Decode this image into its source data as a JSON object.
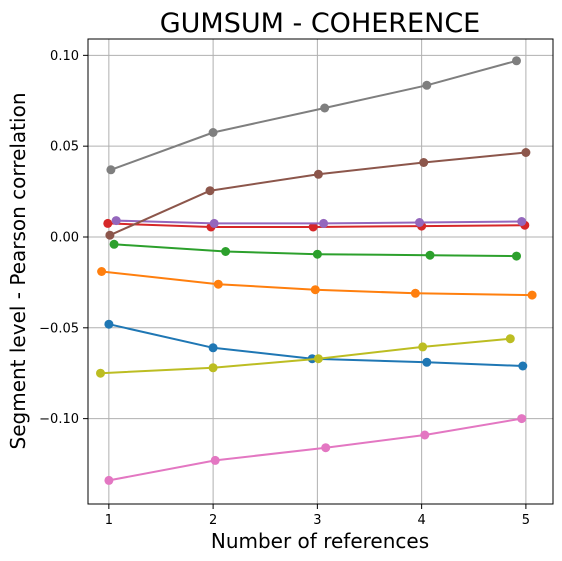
{
  "chart_data": {
    "type": "line",
    "title": "GUMSUM - COHERENCE",
    "xlabel": "Number of references",
    "ylabel": "Segment level - Pearson correlation",
    "xlim": [
      0.8,
      5.26
    ],
    "ylim": [
      -0.147,
      0.109
    ],
    "xticks": [
      1,
      2,
      3,
      4,
      5
    ],
    "xtick_labels": [
      "1",
      "2",
      "3",
      "4",
      "5"
    ],
    "yticks": [
      -0.1,
      -0.05,
      0.0,
      0.05,
      0.1
    ],
    "ytick_labels": [
      "−0.10",
      "−0.05",
      "0.00",
      "0.05",
      "0.10"
    ],
    "grid": true,
    "series": [
      {
        "color": "#1f77b4",
        "x": [
          1.0,
          2.0,
          2.95,
          4.05,
          4.97
        ],
        "y": [
          -0.048,
          -0.061,
          -0.067,
          -0.069,
          -0.071
        ]
      },
      {
        "color": "#ff7f0e",
        "x": [
          0.93,
          2.05,
          2.98,
          3.94,
          5.06
        ],
        "y": [
          -0.019,
          -0.026,
          -0.029,
          -0.031,
          -0.032
        ]
      },
      {
        "color": "#2ca02c",
        "x": [
          1.05,
          2.12,
          3.0,
          4.08,
          4.91
        ],
        "y": [
          -0.004,
          -0.008,
          -0.0095,
          -0.01,
          -0.0105
        ]
      },
      {
        "color": "#d62728",
        "x": [
          0.99,
          1.98,
          2.96,
          4.0,
          4.99
        ],
        "y": [
          0.0075,
          0.0055,
          0.0055,
          0.006,
          0.0065
        ]
      },
      {
        "color": "#9467bd",
        "x": [
          1.07,
          2.01,
          3.06,
          3.98,
          4.96
        ],
        "y": [
          0.009,
          0.0075,
          0.0075,
          0.008,
          0.0085
        ]
      },
      {
        "color": "#8c564b",
        "x": [
          1.01,
          1.97,
          3.01,
          4.02,
          5.0
        ],
        "y": [
          0.001,
          0.0255,
          0.0345,
          0.041,
          0.0465
        ]
      },
      {
        "color": "#e377c2",
        "x": [
          1.0,
          2.02,
          3.08,
          4.03,
          4.96
        ],
        "y": [
          -0.134,
          -0.123,
          -0.116,
          -0.109,
          -0.1
        ]
      },
      {
        "color": "#7f7f7f",
        "x": [
          1.02,
          2.0,
          3.07,
          4.05,
          4.91
        ],
        "y": [
          0.037,
          0.0575,
          0.071,
          0.0835,
          0.097
        ]
      },
      {
        "color": "#bcbd22",
        "x": [
          0.92,
          2.0,
          3.01,
          4.01,
          4.85
        ],
        "y": [
          -0.075,
          -0.072,
          -0.067,
          -0.0605,
          -0.056
        ]
      }
    ]
  }
}
